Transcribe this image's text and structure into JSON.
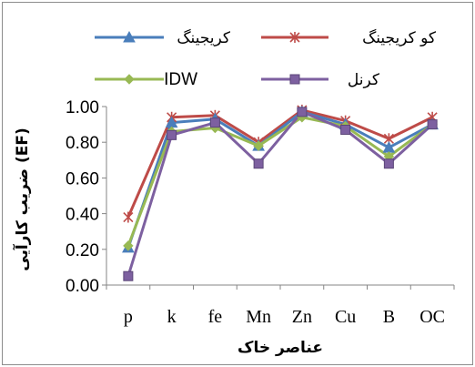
{
  "chart_data": {
    "type": "line",
    "categories": [
      "p",
      "k",
      "fe",
      "Mn",
      "Zn",
      "Cu",
      "B",
      "OC"
    ],
    "series": [
      {
        "name": "کریجینگ",
        "color": "#4a7ebb",
        "marker": "triangle",
        "values": [
          0.21,
          0.91,
          0.93,
          0.78,
          0.97,
          0.9,
          0.77,
          0.9
        ]
      },
      {
        "name": "کو کریجینگ",
        "color": "#be4b48",
        "marker": "star",
        "values": [
          0.38,
          0.94,
          0.95,
          0.8,
          0.98,
          0.92,
          0.82,
          0.94
        ]
      },
      {
        "name": "IDW",
        "color": "#98b954",
        "marker": "diamond",
        "values": [
          0.22,
          0.86,
          0.88,
          0.78,
          0.94,
          0.89,
          0.72,
          0.9
        ]
      },
      {
        "name": "کرنل",
        "color": "#7d60a0",
        "marker": "square",
        "values": [
          0.05,
          0.84,
          0.91,
          0.68,
          0.97,
          0.87,
          0.68,
          0.9
        ]
      }
    ],
    "yticks": [
      "0.00",
      "0.20",
      "0.40",
      "0.60",
      "0.80",
      "1.00"
    ],
    "ylim": [
      0,
      1
    ],
    "xlabel": "عناصر خاک",
    "ylabel": "ضریب کارآیی (EF)",
    "grid": false,
    "legend_position": "top"
  }
}
